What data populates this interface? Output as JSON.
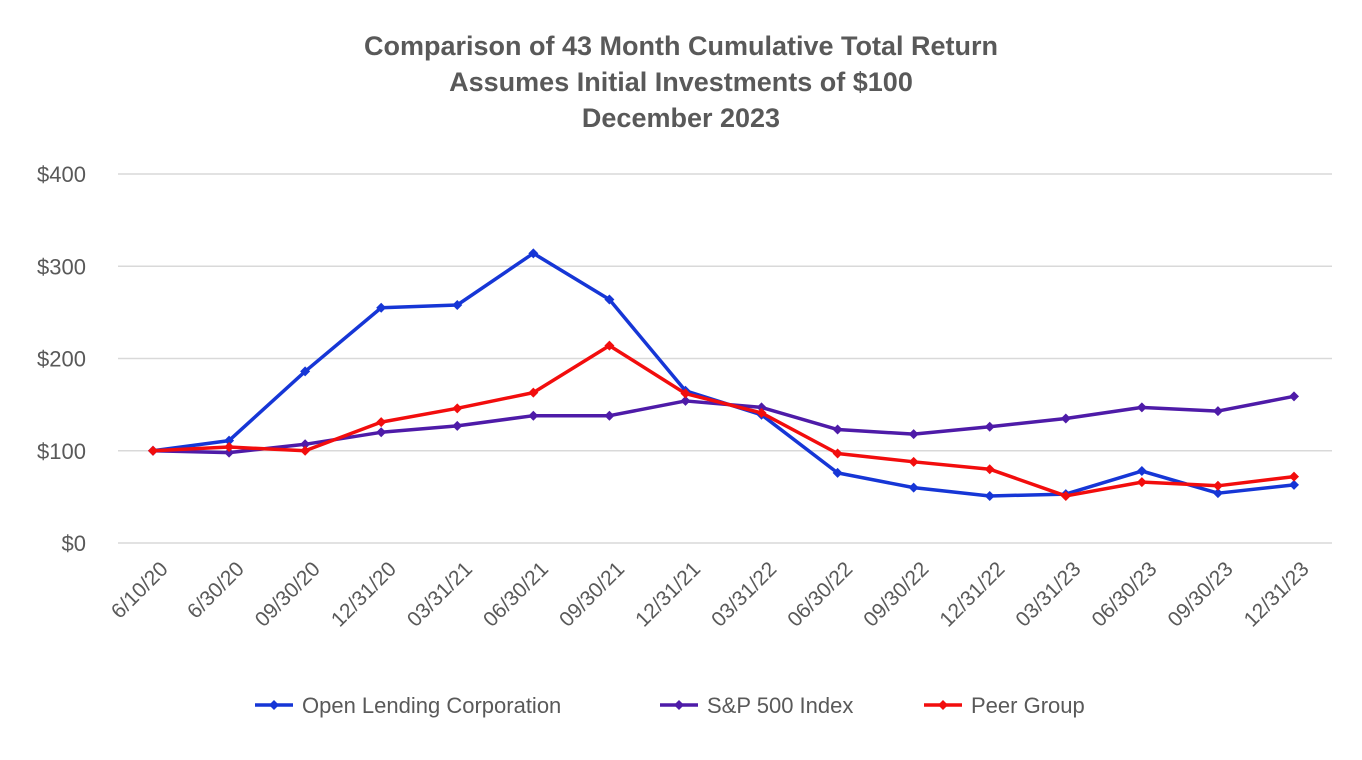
{
  "chart_data": {
    "type": "line",
    "title": [
      "Comparison of 43 Month Cumulative Total Return",
      "Assumes Initial Investments of $100",
      "December 2023"
    ],
    "categories": [
      "6/10/20",
      "6/30/20",
      "09/30/20",
      "12/31/20",
      "03/31/21",
      "06/30/21",
      "09/30/21",
      "12/31/21",
      "03/31/22",
      "06/30/22",
      "09/30/22",
      "12/31/22",
      "03/31/23",
      "06/30/23",
      "09/30/23",
      "12/31/23"
    ],
    "y_ticks": [
      "$0",
      "$100",
      "$200",
      "$300",
      "$400"
    ],
    "ylim": [
      0,
      400
    ],
    "grid": true,
    "legend_position": "bottom",
    "marker": "diamond",
    "series": [
      {
        "name": "Open Lending Corporation",
        "color": "#1636D6",
        "values": [
          100,
          111,
          186,
          255,
          258,
          314,
          264,
          165,
          139,
          76,
          60,
          51,
          53,
          78,
          54,
          63
        ]
      },
      {
        "name": "S&P 500 Index",
        "color": "#4E1BA8",
        "values": [
          100,
          98,
          107,
          120,
          127,
          138,
          138,
          154,
          147,
          123,
          118,
          126,
          135,
          147,
          143,
          159
        ]
      },
      {
        "name": "Peer Group",
        "color": "#F20D0D",
        "values": [
          100,
          104,
          100,
          131,
          146,
          163,
          214,
          162,
          141,
          97,
          88,
          80,
          51,
          66,
          62,
          72
        ]
      }
    ]
  }
}
